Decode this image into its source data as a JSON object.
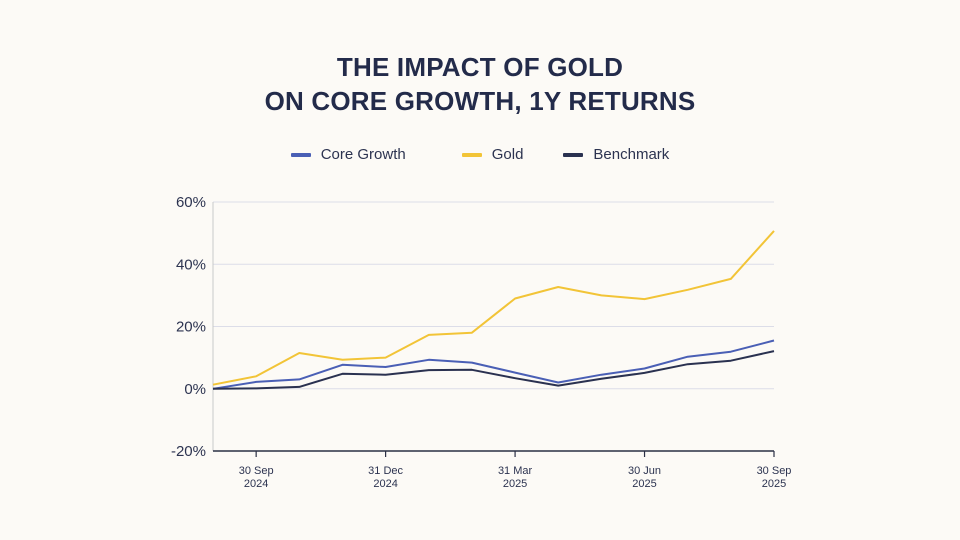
{
  "chart_data": {
    "type": "line",
    "title_line1": "THE IMPACT OF GOLD",
    "title_line2": "ON CORE GROWTH, 1Y RETURNS",
    "xlabel": "",
    "ylabel": "",
    "ylim": [
      -20,
      60
    ],
    "y_ticks": [
      60,
      40,
      20,
      0,
      -20
    ],
    "y_tick_labels": [
      "60%",
      "40%",
      "20%",
      "0%",
      "-20%"
    ],
    "x_ticks": [
      {
        "index": 1,
        "line1": "30 Sep",
        "line2": "2024"
      },
      {
        "index": 4,
        "line1": "31 Dec",
        "line2": "2024"
      },
      {
        "index": 7,
        "line1": "31 Mar",
        "line2": "2025"
      },
      {
        "index": 10,
        "line1": "30 Jun",
        "line2": "2025"
      },
      {
        "index": 13,
        "line1": "30 Sep",
        "line2": "2025"
      }
    ],
    "grid": true,
    "legend_position": "top-center",
    "series": [
      {
        "name": "Core Growth",
        "color": "#4a5fb5",
        "values": [
          0,
          2.2,
          3.0,
          7.7,
          7.0,
          9.3,
          8.4,
          5.2,
          2.0,
          4.5,
          6.5,
          10.3,
          11.9,
          15.5
        ]
      },
      {
        "name": "Gold",
        "color": "#f2c437",
        "values": [
          1.3,
          4.0,
          11.5,
          9.3,
          10.0,
          17.3,
          18.0,
          29.0,
          32.7,
          30.0,
          28.8,
          31.8,
          35.3,
          50.7
        ]
      },
      {
        "name": "Benchmark",
        "color": "#2a3150",
        "values": [
          0,
          0.1,
          0.6,
          4.8,
          4.5,
          6.0,
          6.1,
          3.4,
          1.0,
          3.2,
          5.1,
          7.9,
          9.0,
          12.1
        ]
      }
    ]
  }
}
